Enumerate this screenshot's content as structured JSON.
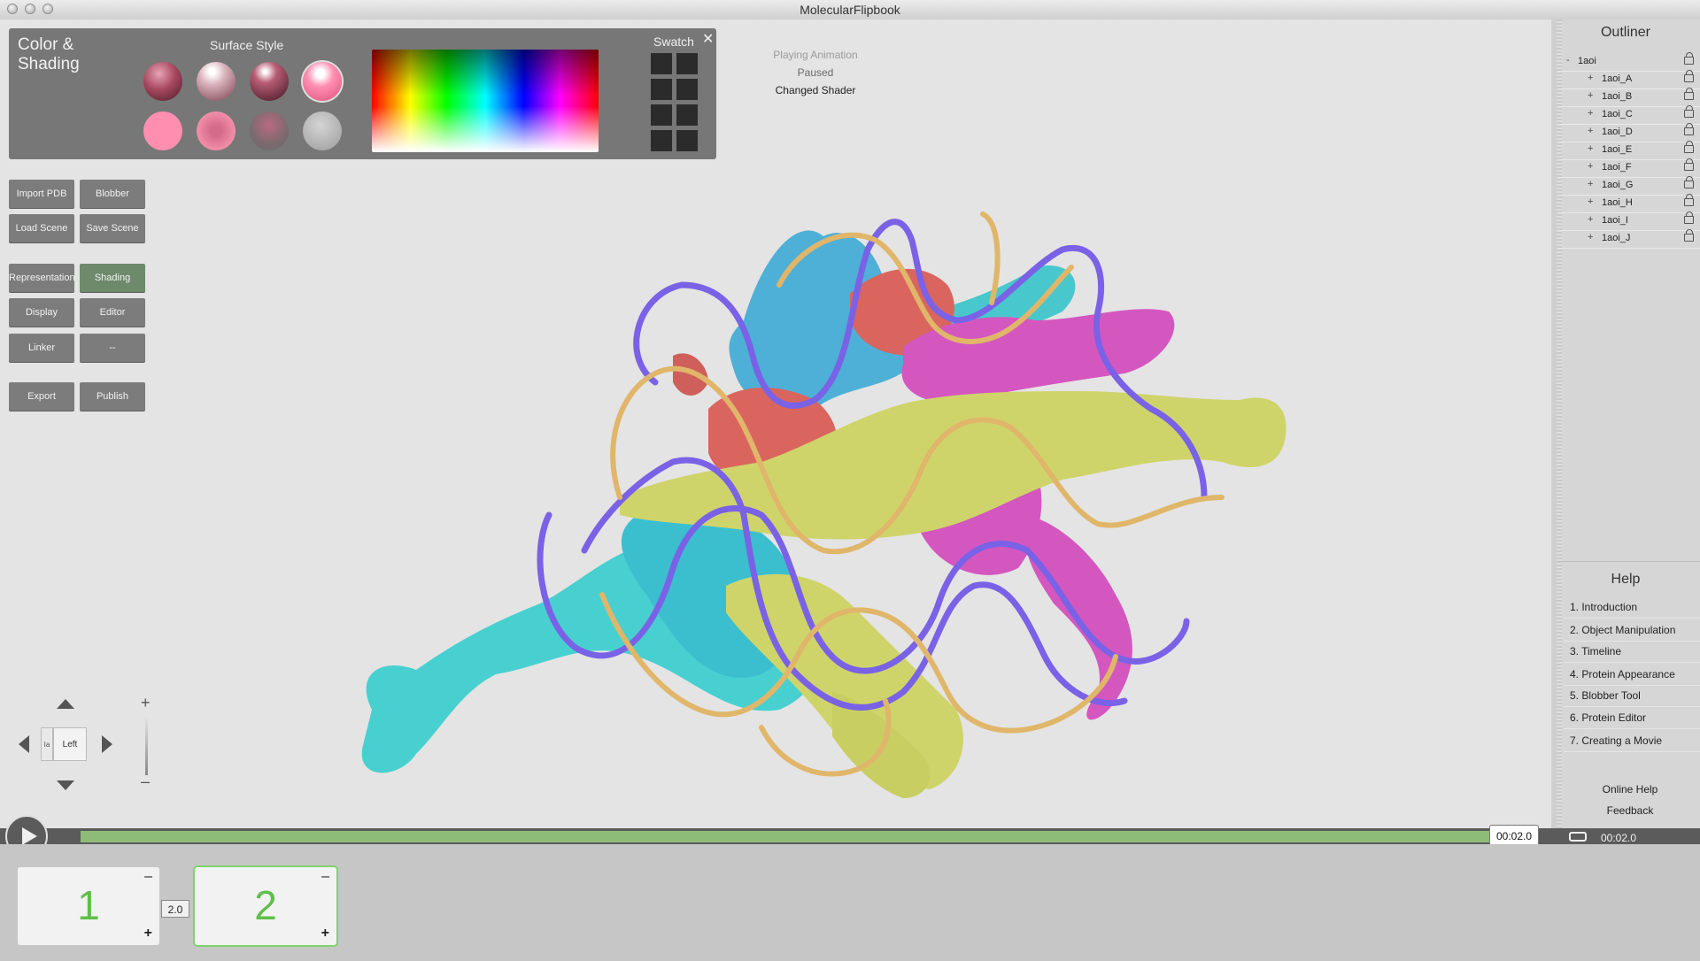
{
  "app": {
    "title": "MolecularFlipbook"
  },
  "color_panel": {
    "title_line1": "Color &",
    "title_line2": "Shading",
    "surface_style_label": "Surface Style",
    "swatch_label": "Swatch",
    "close_symbol": "✕"
  },
  "status": {
    "line1": "Playing Animation",
    "line2": "Paused",
    "line3": "Changed Shader"
  },
  "buttons": {
    "import_pdb": "Import PDB",
    "blobber": "Blobber",
    "load_scene": "Load Scene",
    "save_scene": "Save Scene",
    "representation": "Representation",
    "shading": "Shading",
    "display": "Display",
    "editor": "Editor",
    "linker": "Linker",
    "more": "--",
    "export": "Export",
    "publish": "Publish"
  },
  "nav": {
    "view_label": "Left",
    "view_side_label": "Ia",
    "zoom_plus": "+",
    "zoom_minus": "–"
  },
  "outliner": {
    "title": "Outliner",
    "root": {
      "name": "1aoi",
      "expander": "-"
    },
    "items": [
      {
        "name": "1aoi_A",
        "expander": "+"
      },
      {
        "name": "1aoi_B",
        "expander": "+"
      },
      {
        "name": "1aoi_C",
        "expander": "+"
      },
      {
        "name": "1aoi_D",
        "expander": "+"
      },
      {
        "name": "1aoi_E",
        "expander": "+"
      },
      {
        "name": "1aoi_F",
        "expander": "+"
      },
      {
        "name": "1aoi_G",
        "expander": "+"
      },
      {
        "name": "1aoi_H",
        "expander": "+"
      },
      {
        "name": "1aoi_I",
        "expander": "+"
      },
      {
        "name": "1aoi_J",
        "expander": "+"
      }
    ]
  },
  "help": {
    "title": "Help",
    "items": [
      "1. Introduction",
      "2. Object Manipulation",
      "3. Timeline",
      "4. Protein Appearance",
      "5. Blobber Tool",
      "6. Protein Editor",
      "7. Creating a Movie"
    ],
    "online_help": "Online Help",
    "feedback": "Feedback"
  },
  "timeline": {
    "current_time": "00:02.0",
    "total_time": "00:02.0",
    "progress": 1.0
  },
  "frames": {
    "items": [
      {
        "number": "1"
      },
      {
        "number": "2"
      }
    ],
    "duration": "2.0",
    "minus": "–",
    "plus": "+"
  },
  "colors": {
    "protein_cyan": "#3fcfcf",
    "protein_blue": "#4eb0d6",
    "protein_red": "#d9655e",
    "protein_magenta": "#d457c0",
    "protein_yellow": "#cfd46a",
    "dna_gold": "#e0b66a",
    "dna_violet": "#7a62e6",
    "timeline_green": "#8dbb78",
    "frame_number_green": "#5fbf4a"
  }
}
